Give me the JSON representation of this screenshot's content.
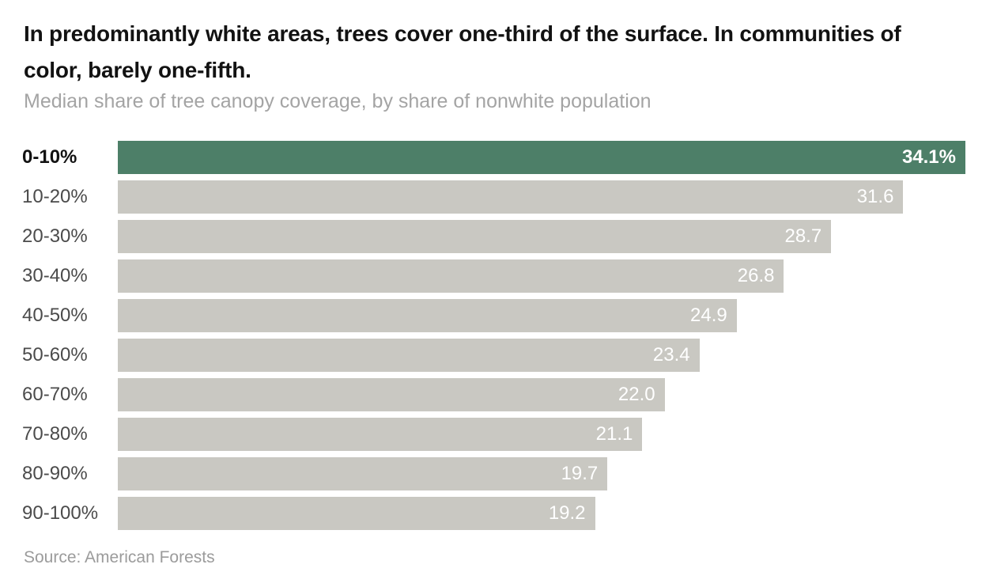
{
  "chart_data": {
    "type": "bar",
    "orientation": "horizontal",
    "title": "In predominantly white areas, trees cover one-third of the surface. In communities of color, barely one-fifth.",
    "subtitle": "Median share of tree canopy coverage, by share of nonwhite population",
    "source": "Source: American Forests",
    "categories": [
      "0-10%",
      "10-20%",
      "20-30%",
      "30-40%",
      "40-50%",
      "50-60%",
      "60-70%",
      "70-80%",
      "80-90%",
      "90-100%"
    ],
    "values": [
      34.1,
      31.6,
      28.7,
      26.8,
      24.9,
      23.4,
      22.0,
      21.1,
      19.7,
      19.2
    ],
    "value_labels": [
      "34.1%",
      "31.6",
      "28.7",
      "26.8",
      "24.9",
      "23.4",
      "22.0",
      "21.1",
      "19.7",
      "19.2"
    ],
    "xlim": [
      0,
      34.1
    ],
    "highlight_index": 0,
    "grid": false,
    "legend": "none",
    "colors": {
      "highlight_bar": "#4d7f68",
      "bar": "#c9c8c2",
      "title_text": "#121212",
      "subtitle_text": "#a4a4a4",
      "category_label": "#4b4b4b",
      "highlight_category_label": "#121212",
      "value_text": "#ffffff",
      "source_text": "#9b9b9b"
    }
  }
}
